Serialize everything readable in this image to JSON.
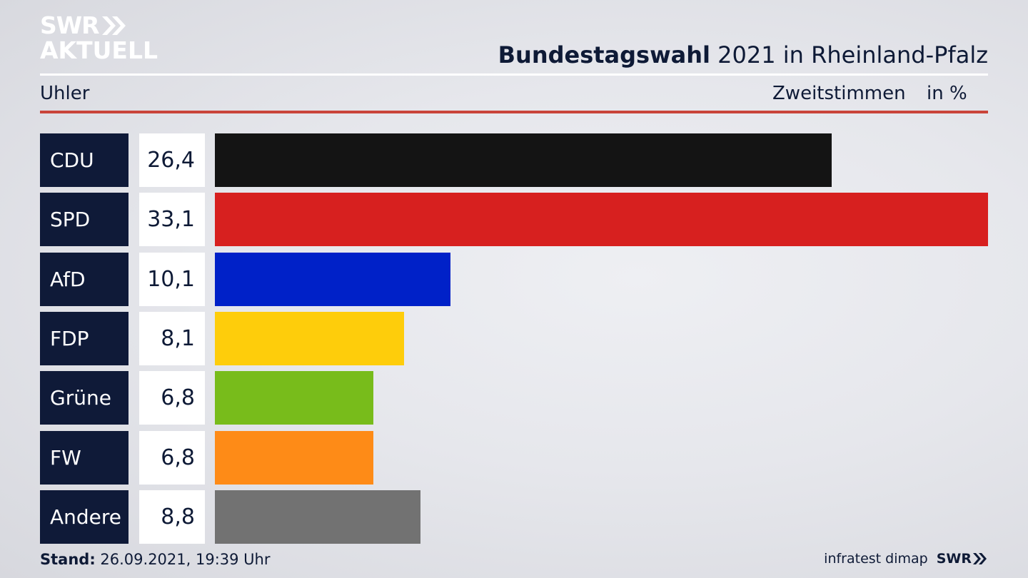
{
  "logo": {
    "line1": "SWR",
    "line2": "AKTUELL"
  },
  "header": {
    "title_bold": "Bundestagswahl",
    "title_rest": " 2021 in Rheinland-Pfalz",
    "subtitle": "Uhler",
    "measure": "Zweitstimmen",
    "unit": "in %"
  },
  "chart_data": {
    "type": "bar",
    "orientation": "horizontal",
    "categories": [
      "CDU",
      "SPD",
      "AfD",
      "FDP",
      "Grüne",
      "FW",
      "Andere"
    ],
    "values": [
      26.4,
      33.1,
      10.1,
      8.1,
      6.8,
      6.8,
      8.8
    ],
    "value_labels": [
      "26,4",
      "33,1",
      "10,1",
      "8,1",
      "6,8",
      "6,8",
      "8,8"
    ],
    "colors": [
      "#141414",
      "#d7201f",
      "#0021c8",
      "#fecd0b",
      "#78bc1b",
      "#fe8b17",
      "#727272"
    ],
    "title": "Bundestagswahl 2021 in Rheinland-Pfalz",
    "xlabel": "Zweitstimmen",
    "ylabel": "",
    "xlim": [
      0,
      33.1
    ]
  },
  "footer": {
    "stand_label": "Stand:",
    "stand_value": " 26.09.2021, 19:39 Uhr",
    "source": "infratest dimap",
    "logo": "SWR"
  }
}
